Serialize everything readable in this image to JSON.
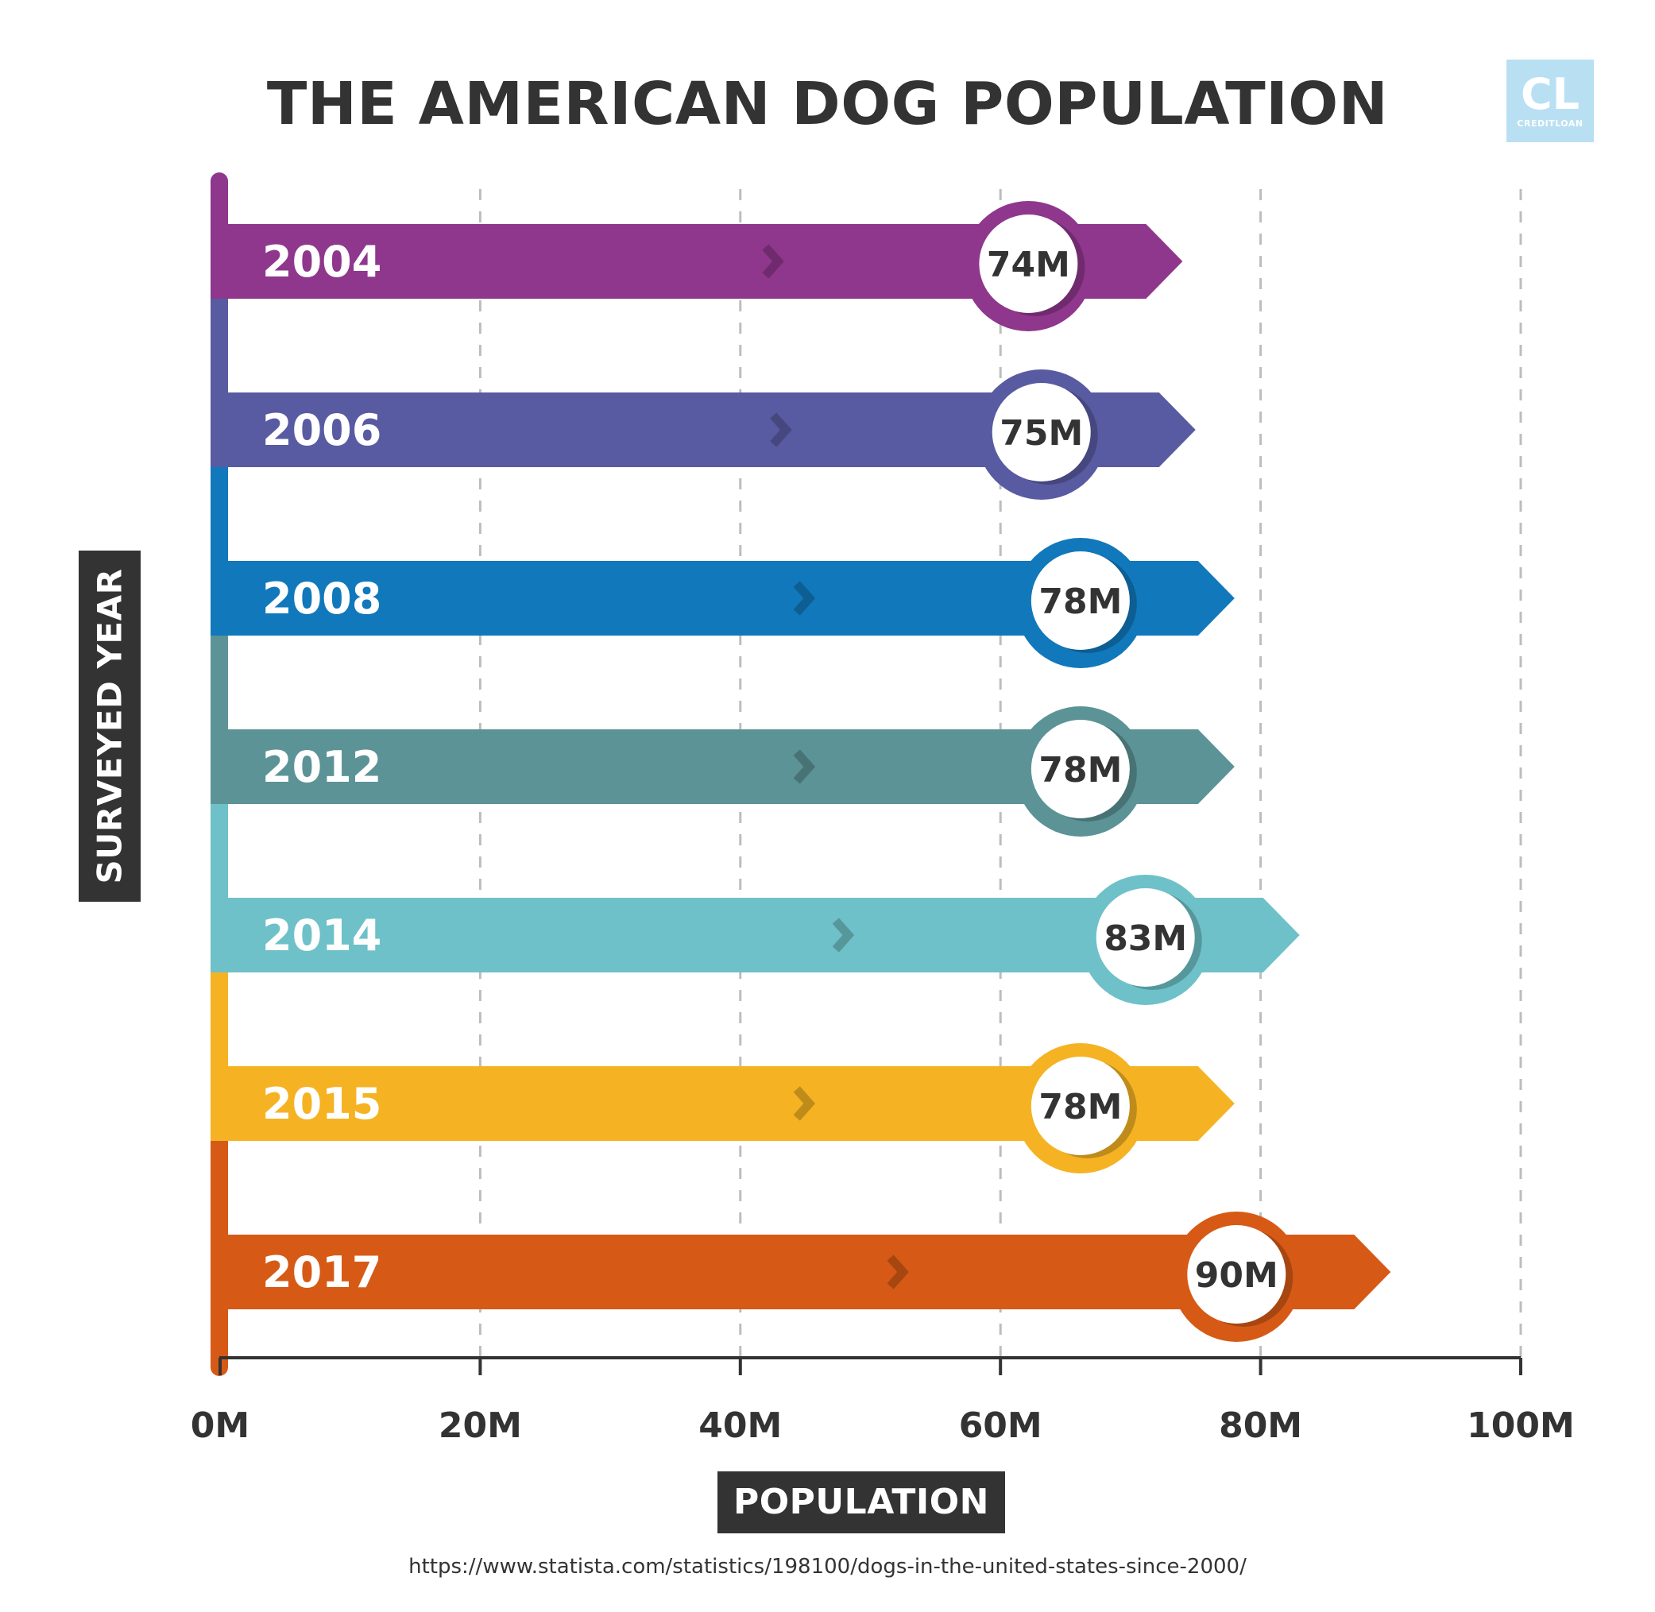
{
  "header": {
    "title": "THE AMERICAN DOG POPULATION"
  },
  "logo": {
    "mark": "CL",
    "name": "CREDITLOAN",
    "color": "#b9dff3"
  },
  "footer": {
    "source": "https://www.statista.com/statistics/198100/dogs-in-the-united-states-since-2000/"
  },
  "chart_data": {
    "type": "bar",
    "orientation": "horizontal",
    "title": "THE AMERICAN DOG POPULATION",
    "xlabel": "POPULATION",
    "ylabel": "SURVEYED YEAR",
    "xlim": [
      0,
      100
    ],
    "x_ticks": [
      "0M",
      "20M",
      "40M",
      "60M",
      "80M",
      "100M"
    ],
    "grid": "vertical-dashed",
    "legend": "none",
    "categories": [
      "2004",
      "2006",
      "2008",
      "2012",
      "2014",
      "2015",
      "2017"
    ],
    "values": [
      74,
      75,
      78,
      78,
      83,
      78,
      90
    ],
    "value_labels": [
      "74M",
      "75M",
      "78M",
      "78M",
      "83M",
      "78M",
      "90M"
    ],
    "colors": [
      "#8e378c",
      "#585ba1",
      "#1178bb",
      "#5c9396",
      "#6ec1c8",
      "#f5b323",
      "#d65a16"
    ]
  }
}
